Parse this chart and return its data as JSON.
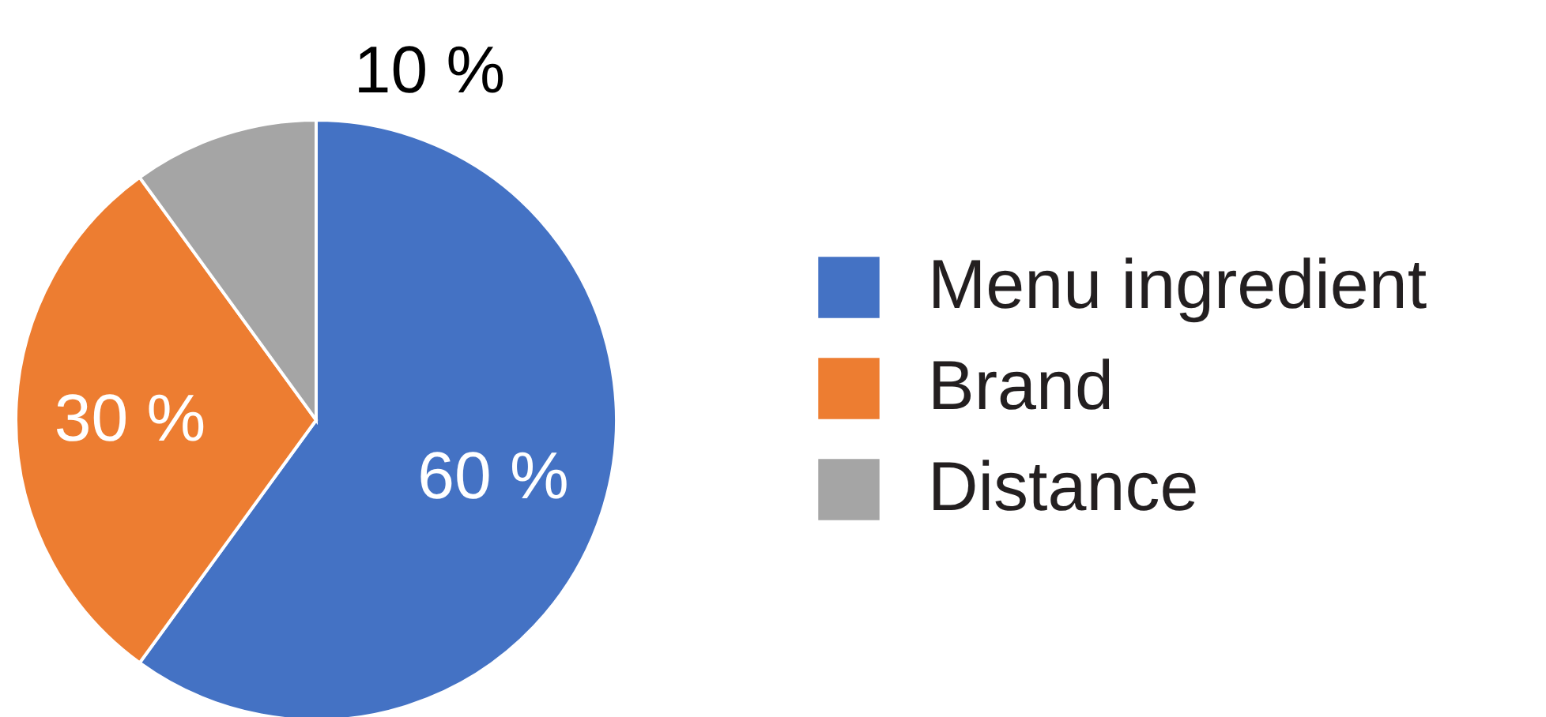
{
  "chart_data": {
    "type": "pie",
    "categories": [
      "Menu ingredient",
      "Brand",
      "Distance"
    ],
    "values": [
      60,
      30,
      10
    ],
    "colors": [
      "#4472c4",
      "#ed7d31",
      "#a5a5a5"
    ],
    "value_labels": [
      "60 %",
      "30 %",
      "10 %"
    ],
    "legend": "right"
  }
}
